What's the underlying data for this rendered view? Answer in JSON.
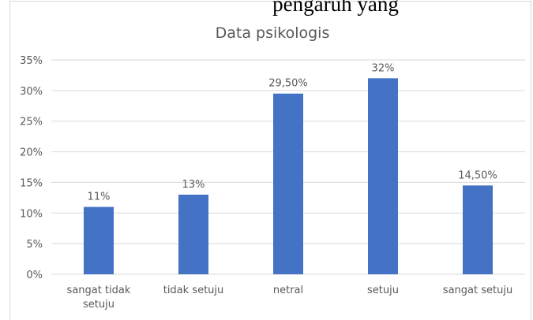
{
  "header_text": "pengaruh yang",
  "chart_data": {
    "type": "bar",
    "title": "Data psikologis",
    "categories": [
      "sangat tidak setuju",
      "tidak setuju",
      "netral",
      "setuju",
      "sangat setuju"
    ],
    "values": [
      11,
      13,
      29.5,
      32,
      14.5
    ],
    "value_labels": [
      "11%",
      "13%",
      "29,50%",
      "32%",
      "14,50%"
    ],
    "color": "#4472c4",
    "ylim": [
      0,
      35
    ],
    "yticks": [
      {
        "value": 0,
        "label": "0%"
      },
      {
        "value": 5,
        "label": "5%"
      },
      {
        "value": 10,
        "label": "10%"
      },
      {
        "value": 15,
        "label": "15%"
      },
      {
        "value": 20,
        "label": "20%"
      },
      {
        "value": 25,
        "label": "25%"
      },
      {
        "value": 30,
        "label": "30%"
      },
      {
        "value": 35,
        "label": "35%"
      }
    ],
    "grid": true
  }
}
